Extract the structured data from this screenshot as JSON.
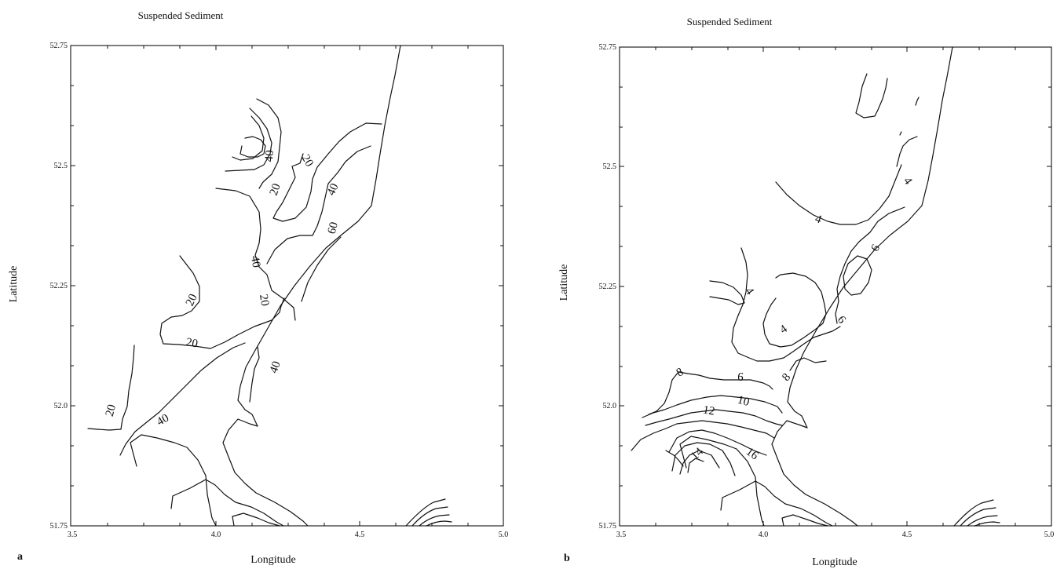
{
  "chart_data": [
    {
      "type": "contour",
      "panel_label": "a",
      "title": "Suspended Sediment",
      "xlabel": "Longitude",
      "ylabel": "Latitude",
      "xlim": [
        3.5,
        5.0
      ],
      "ylim": [
        51.75,
        52.75
      ],
      "xticklabels": [
        "3.5",
        "4.0",
        "4.5",
        "5.0"
      ],
      "yticklabels": [
        "51.75",
        "52.0",
        "52.25",
        "52.5",
        "52.75"
      ],
      "contour_levels": [
        {
          "text": "20",
          "lon": 3.64,
          "lat": 51.99,
          "angle": -75
        },
        {
          "text": "40",
          "lon": 3.82,
          "lat": 51.97,
          "angle": -30
        },
        {
          "text": "20",
          "lon": 3.92,
          "lat": 52.13,
          "angle": 10
        },
        {
          "text": "20",
          "lon": 3.92,
          "lat": 52.22,
          "angle": -65
        },
        {
          "text": "40",
          "lon": 4.21,
          "lat": 52.08,
          "angle": -70
        },
        {
          "text": "20",
          "lon": 4.17,
          "lat": 52.22,
          "angle": 80
        },
        {
          "text": "40",
          "lon": 4.14,
          "lat": 52.3,
          "angle": 80
        },
        {
          "text": "60",
          "lon": 4.41,
          "lat": 52.37,
          "angle": -75
        },
        {
          "text": "20",
          "lon": 4.21,
          "lat": 52.45,
          "angle": -70
        },
        {
          "text": "40",
          "lon": 4.19,
          "lat": 52.52,
          "angle": -85
        },
        {
          "text": "20",
          "lon": 4.32,
          "lat": 52.51,
          "angle": 60
        },
        {
          "text": "40",
          "lon": 4.41,
          "lat": 52.45,
          "angle": -65
        }
      ]
    },
    {
      "type": "contour",
      "panel_label": "b",
      "title": "Suspended Sediment",
      "xlabel": "Longitude",
      "ylabel": "Latitude",
      "xlim": [
        3.5,
        5.0
      ],
      "ylim": [
        51.75,
        52.75
      ],
      "xticklabels": [
        "3.5",
        "4.0",
        "4.5",
        "5.0"
      ],
      "yticklabels": [
        "51.75",
        "52.0",
        "52.25",
        "52.5",
        "52.75"
      ],
      "contour_levels": [
        {
          "text": "4",
          "lon": 4.5,
          "lat": 52.47,
          "angle": 55
        },
        {
          "text": "4",
          "lon": 4.19,
          "lat": 52.39,
          "angle": 20
        },
        {
          "text": "6",
          "lon": 4.39,
          "lat": 52.33,
          "angle": -60
        },
        {
          "text": "6",
          "lon": 4.27,
          "lat": 52.18,
          "angle": 50
        },
        {
          "text": "4",
          "lon": 3.95,
          "lat": 52.24,
          "angle": 55
        },
        {
          "text": "4",
          "lon": 4.07,
          "lat": 52.16,
          "angle": -35
        },
        {
          "text": "6",
          "lon": 3.92,
          "lat": 52.06,
          "angle": 5
        },
        {
          "text": "8",
          "lon": 3.71,
          "lat": 52.07,
          "angle": -30
        },
        {
          "text": "8",
          "lon": 4.08,
          "lat": 52.06,
          "angle": -50
        },
        {
          "text": "10",
          "lon": 3.93,
          "lat": 52.01,
          "angle": 15
        },
        {
          "text": "12",
          "lon": 3.81,
          "lat": 51.99,
          "angle": 10
        },
        {
          "text": "16",
          "lon": 3.96,
          "lat": 51.9,
          "angle": 35
        },
        {
          "text": "14",
          "lon": 3.77,
          "lat": 51.9,
          "angle": -45
        }
      ]
    }
  ]
}
